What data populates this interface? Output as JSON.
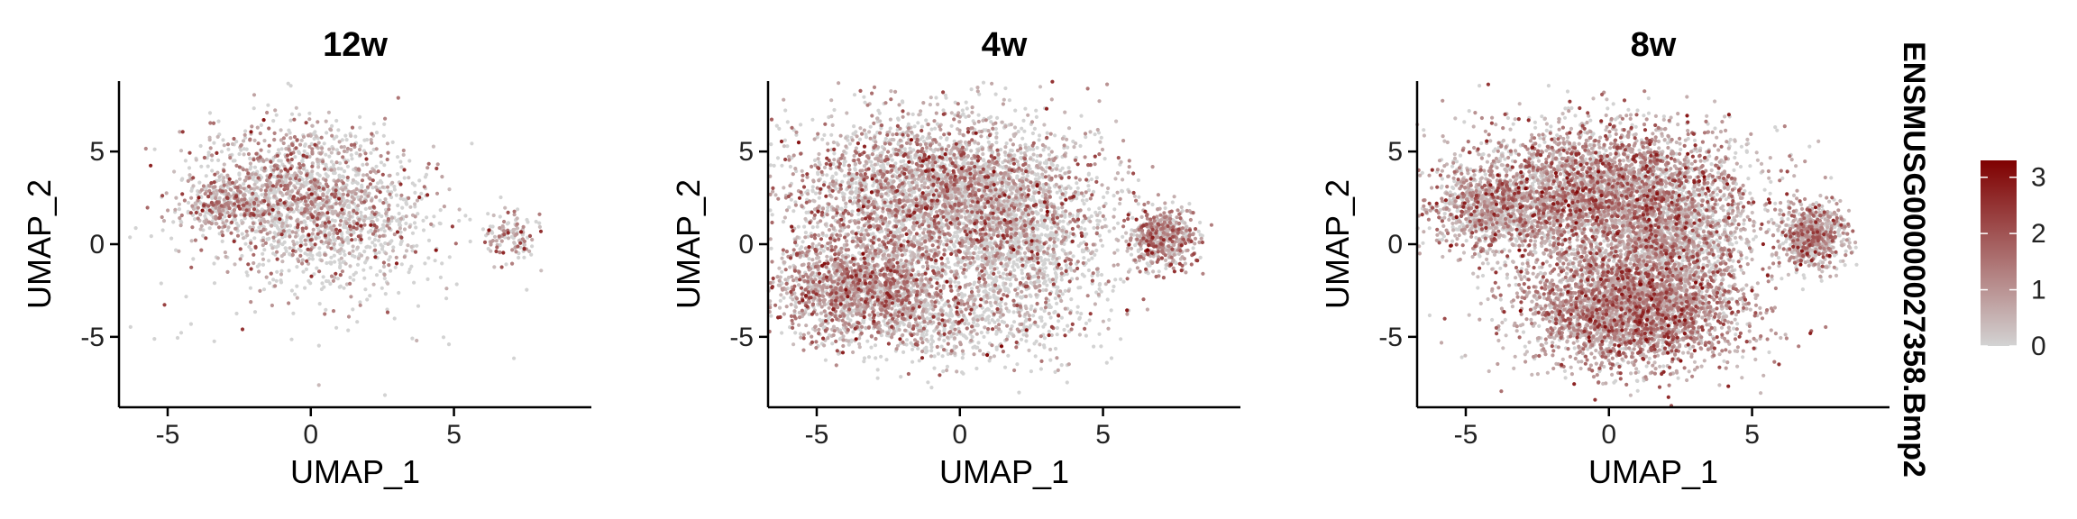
{
  "chart_data": [
    {
      "type": "scatter",
      "title": "12w",
      "xlabel": "UMAP_1",
      "ylabel": "UMAP_2",
      "xlim": [
        -6.7,
        9.8
      ],
      "ylim": [
        -8.8,
        8.8
      ],
      "xticks": [
        -5,
        0,
        5
      ],
      "yticks": [
        -5,
        0,
        5
      ],
      "seed": 12,
      "clusters": [
        {
          "cx": -0.5,
          "cy": 2.8,
          "sx": 1.9,
          "sy": 1.9,
          "n": 1400,
          "expr": 0.55
        },
        {
          "cx": 1.2,
          "cy": 0.6,
          "sx": 1.5,
          "sy": 1.5,
          "n": 450,
          "expr": 0.3
        },
        {
          "cx": -3.0,
          "cy": 2.1,
          "sx": 0.9,
          "sy": 0.6,
          "n": 260,
          "expr": 0.65
        },
        {
          "cx": 7.0,
          "cy": 0.3,
          "sx": 0.55,
          "sy": 0.8,
          "n": 120,
          "expr": 0.6
        },
        {
          "cx": -0.5,
          "cy": -3.0,
          "sx": 3.2,
          "sy": 2.3,
          "n": 70,
          "expr": 0.25
        }
      ],
      "color_scale": {
        "low": "#d3d3d3",
        "high": "#7f0000",
        "min": 0,
        "max": 3.3
      }
    },
    {
      "type": "scatter",
      "title": "4w",
      "xlabel": "UMAP_1",
      "ylabel": "UMAP_2",
      "xlim": [
        -6.7,
        9.8
      ],
      "ylim": [
        -8.8,
        8.8
      ],
      "xticks": [
        -5,
        0,
        5
      ],
      "yticks": [
        -5,
        0,
        5
      ],
      "seed": 4,
      "clusters": [
        {
          "cx": -0.8,
          "cy": 2.8,
          "sx": 2.5,
          "sy": 2.1,
          "n": 3200,
          "expr": 0.55
        },
        {
          "cx": -3.4,
          "cy": -2.4,
          "sx": 1.6,
          "sy": 1.4,
          "n": 1600,
          "expr": 0.75
        },
        {
          "cx": 2.0,
          "cy": 0.0,
          "sx": 1.6,
          "sy": 2.2,
          "n": 1200,
          "expr": 0.35
        },
        {
          "cx": 7.1,
          "cy": 0.3,
          "sx": 0.6,
          "sy": 0.85,
          "n": 500,
          "expr": 0.75
        },
        {
          "cx": 0.0,
          "cy": -4.2,
          "sx": 2.3,
          "sy": 1.2,
          "n": 600,
          "expr": 0.3
        }
      ],
      "color_scale": {
        "low": "#d3d3d3",
        "high": "#7f0000",
        "min": 0,
        "max": 3.3
      }
    },
    {
      "type": "scatter",
      "title": "8w",
      "xlabel": "UMAP_1",
      "ylabel": "UMAP_2",
      "xlim": [
        -6.7,
        9.8
      ],
      "ylim": [
        -8.8,
        8.8
      ],
      "xticks": [
        -5,
        0,
        5
      ],
      "yticks": [
        -5,
        0,
        5
      ],
      "seed": 8,
      "clusters": [
        {
          "cx": -0.3,
          "cy": 2.5,
          "sx": 2.6,
          "sy": 2.0,
          "n": 3800,
          "expr": 0.75
        },
        {
          "cx": 0.8,
          "cy": -3.5,
          "sx": 1.9,
          "sy": 1.6,
          "n": 3000,
          "expr": 0.85
        },
        {
          "cx": 2.3,
          "cy": 0.2,
          "sx": 1.2,
          "sy": 1.6,
          "n": 900,
          "expr": 0.45
        },
        {
          "cx": 7.1,
          "cy": 0.4,
          "sx": 0.6,
          "sy": 0.85,
          "n": 650,
          "expr": 0.7
        },
        {
          "cx": -4.2,
          "cy": 1.8,
          "sx": 1.0,
          "sy": 0.9,
          "n": 600,
          "expr": 0.6
        }
      ],
      "color_scale": {
        "low": "#d3d3d3",
        "high": "#7f0000",
        "min": 0,
        "max": 3.3
      }
    }
  ],
  "legend": {
    "title": "ENSMUSG00000027358.Bmp2",
    "ticks": [
      "3",
      "2",
      "1",
      "0"
    ],
    "tick_values": [
      3,
      2,
      1,
      0
    ],
    "low_color": "#d3d3d3",
    "high_color": "#7f0000",
    "min": 0,
    "max": 3.3
  }
}
